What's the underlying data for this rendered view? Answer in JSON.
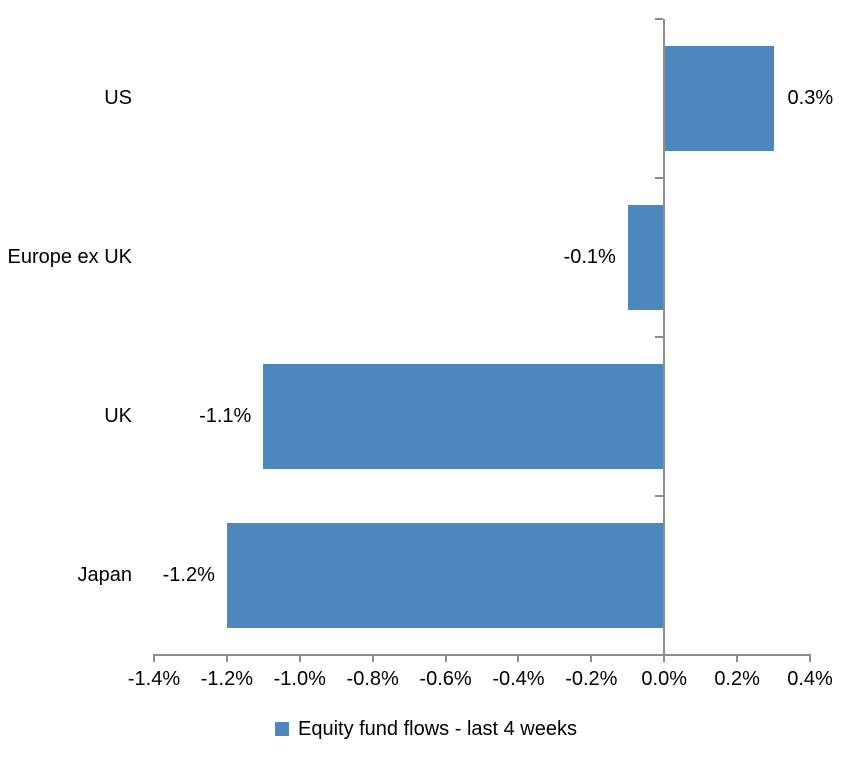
{
  "chart_data": {
    "type": "bar",
    "orientation": "horizontal",
    "title": "",
    "xlabel": "",
    "ylabel": "",
    "categories": [
      "US",
      "Europe ex UK",
      "UK",
      "Japan"
    ],
    "series": [
      {
        "name": "Equity fund flows - last 4 weeks",
        "values": [
          0.3,
          -0.1,
          -1.1,
          -1.2
        ],
        "value_labels": [
          "0.3%",
          "-0.1%",
          "-1.1%",
          "-1.2%"
        ]
      }
    ],
    "xlim": [
      -1.4,
      0.4
    ],
    "tick_step": 0.2,
    "x_tick_labels": [
      "-1.4%",
      "-1.2%",
      "-1.0%",
      "-0.8%",
      "-0.6%",
      "-0.4%",
      "-0.2%",
      "0.0%",
      "0.2%",
      "0.4%"
    ],
    "grid": false,
    "legend_position": "bottom",
    "data_label_position": "outside-end",
    "bar_color": "#4D87BE",
    "axis_color": "#8C8C8C",
    "text_color": "#000000",
    "background_color": "#FFFFFF"
  },
  "legend": {
    "label": "Equity fund flows - last 4 weeks"
  }
}
